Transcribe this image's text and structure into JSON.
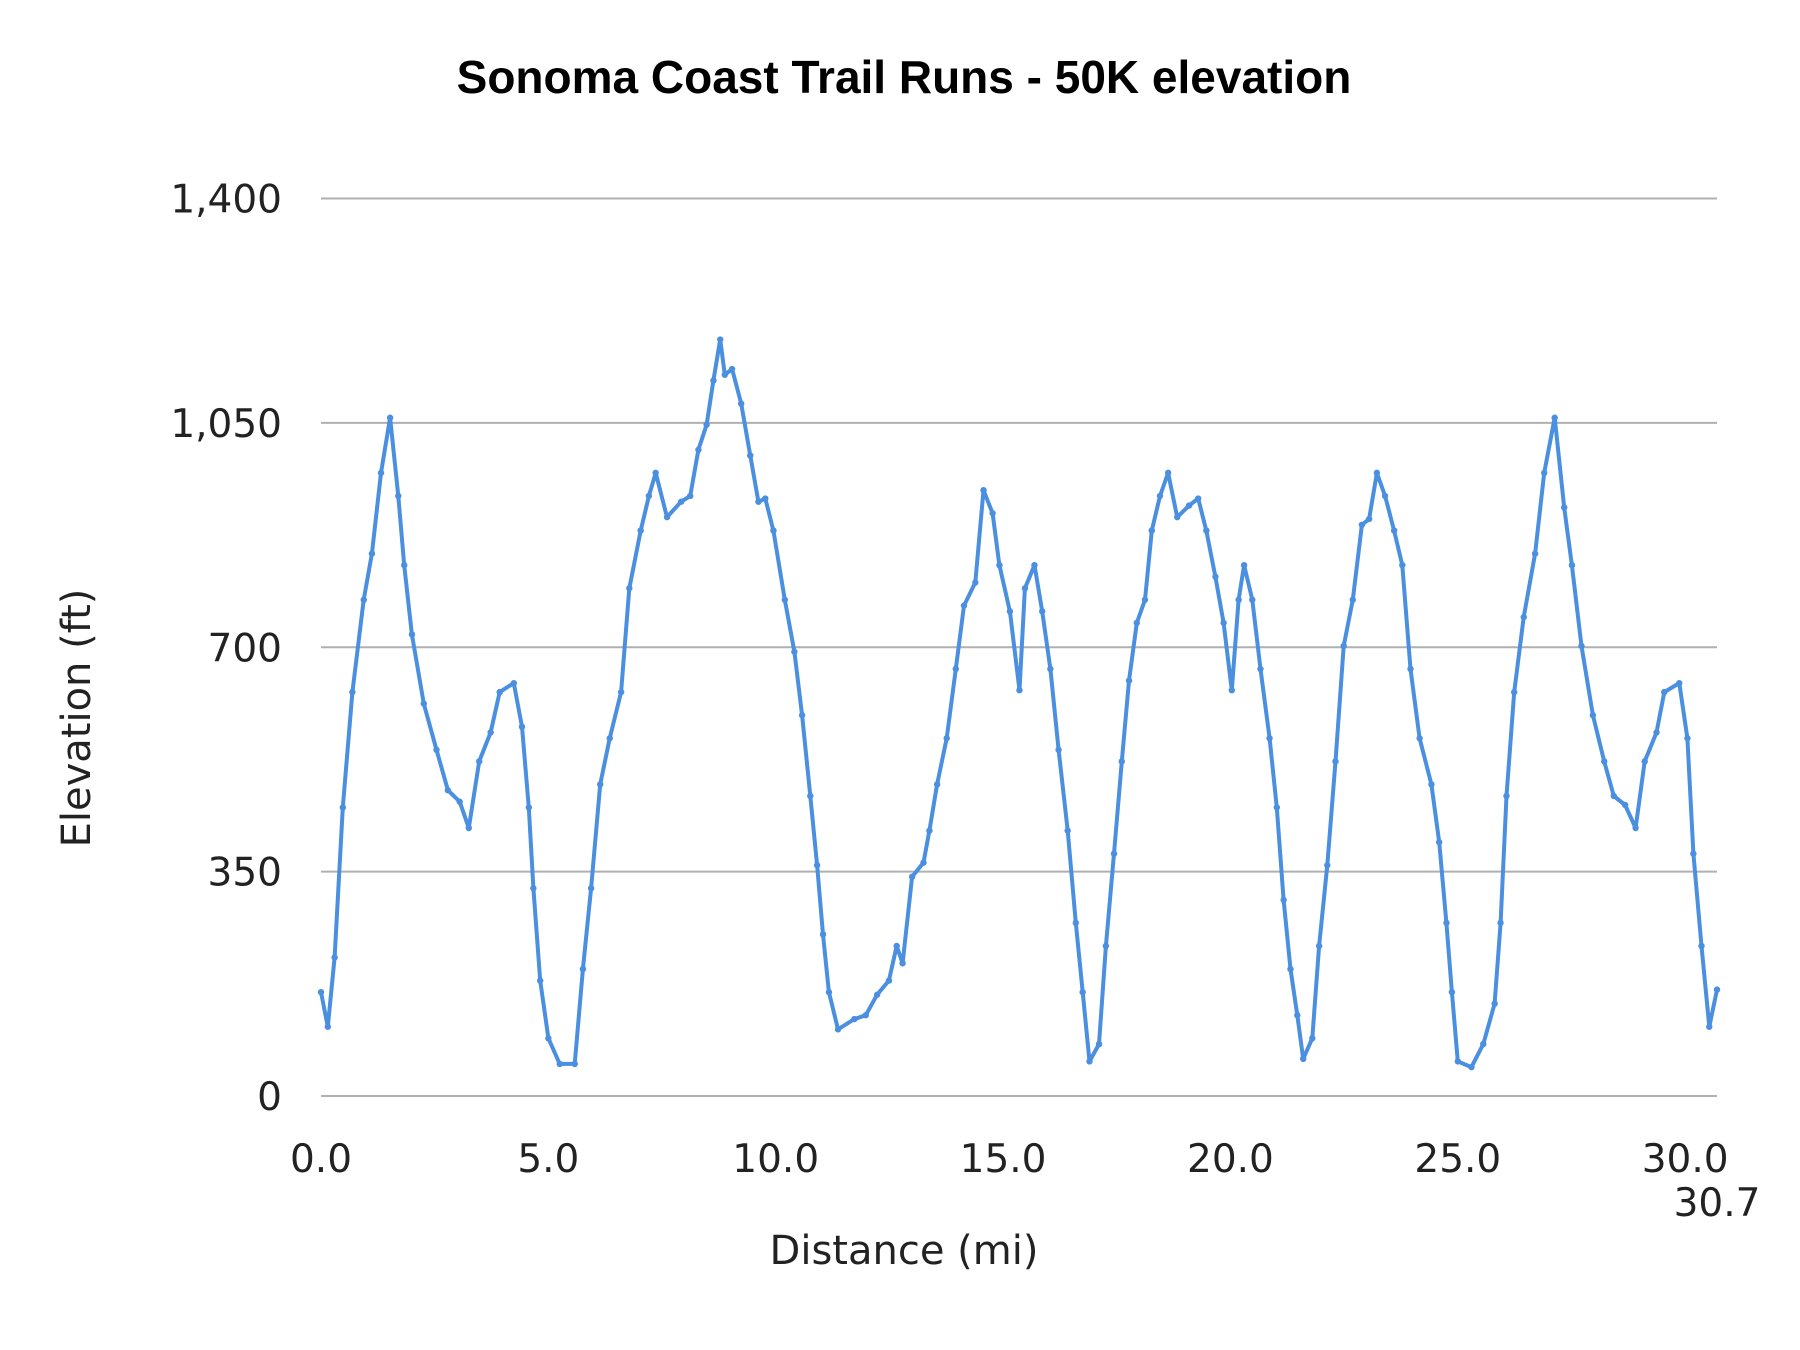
{
  "chart_data": {
    "type": "line",
    "title": "Sonoma Coast Trail Runs - 50K elevation",
    "xlabel": "Distance (mi)",
    "ylabel": "Elevation (ft)",
    "xlim": [
      0,
      30.7
    ],
    "ylim": [
      0,
      1400
    ],
    "x_ticks": [
      "0.0",
      "5.0",
      "10.0",
      "15.0",
      "20.0",
      "25.0",
      "30.0",
      "30.7"
    ],
    "x_tick_values": [
      0,
      5,
      10,
      15,
      20,
      25,
      30,
      30.7
    ],
    "y_ticks": [
      "0",
      "350",
      "700",
      "1,050",
      "1,400"
    ],
    "y_tick_values": [
      0,
      350,
      700,
      1050,
      1400
    ],
    "grid": "horizontal",
    "line_color": "#4a8fe0",
    "grid_color": "#b0b0b0",
    "series": [
      {
        "x": [
          0,
          0.15,
          0.3,
          0.48,
          0.69,
          0.94,
          1.12,
          1.32,
          1.52,
          1.7,
          1.83,
          2.0,
          2.26,
          2.54,
          2.79,
          3.05,
          3.25,
          3.48,
          3.73,
          3.93,
          4.24,
          4.42,
          4.57,
          4.67,
          4.82,
          5.0,
          5.25,
          5.58,
          5.76,
          5.94,
          6.14,
          6.35,
          6.6,
          6.78,
          7.03,
          7.21,
          7.36,
          7.61,
          7.92,
          8.12,
          8.3,
          8.48,
          8.63,
          8.78,
          8.88,
          9.04,
          9.24,
          9.44,
          9.62,
          9.77,
          9.95,
          10.2,
          10.41,
          10.58,
          10.76,
          10.91,
          11.04,
          11.17,
          11.37,
          11.73,
          11.98,
          12.23,
          12.49,
          12.66,
          12.79,
          13.0,
          13.25,
          13.38,
          13.55,
          13.76,
          13.96,
          14.14,
          14.39,
          14.57,
          14.77,
          14.92,
          15.15,
          15.36,
          15.48,
          15.69,
          15.86,
          16.04,
          16.22,
          16.42,
          16.6,
          16.75,
          16.9,
          17.11,
          17.26,
          17.44,
          17.61,
          17.77,
          17.94,
          18.12,
          18.27,
          18.45,
          18.63,
          18.83,
          19.09,
          19.29,
          19.47,
          19.67,
          19.85,
          20.03,
          20.18,
          20.3,
          20.48,
          20.66,
          20.86,
          21.02,
          21.17,
          21.32,
          21.47,
          21.6,
          21.8,
          21.95,
          22.13,
          22.31,
          22.49,
          22.69,
          22.89,
          23.05,
          23.22,
          23.4,
          23.6,
          23.78,
          23.96,
          24.16,
          24.42,
          24.59,
          24.75,
          24.87,
          25.0,
          25.3,
          25.56,
          25.81,
          25.94,
          26.07,
          26.24,
          26.45,
          26.7,
          26.9,
          27.13,
          27.34,
          27.51,
          27.72,
          27.97,
          28.22,
          28.43,
          28.68,
          28.91,
          29.11,
          29.37,
          29.54,
          29.87,
          30.05,
          30.18,
          30.36,
          30.53,
          30.7
        ],
        "y": [
          162,
          108,
          216,
          450,
          630,
          774,
          846,
          972,
          1058,
          936,
          828,
          720,
          612,
          540,
          477,
          459,
          418,
          522,
          567,
          630,
          644,
          576,
          450,
          324,
          180,
          90,
          50,
          50,
          198,
          324,
          486,
          558,
          630,
          792,
          882,
          936,
          972,
          903,
          927,
          936,
          1008,
          1047,
          1116,
          1180,
          1125,
          1134,
          1080,
          999,
          927,
          932,
          882,
          774,
          693,
          594,
          468,
          360,
          252,
          162,
          104,
          120,
          126,
          158,
          180,
          234,
          207,
          342,
          364,
          414,
          486,
          558,
          666,
          765,
          801,
          945,
          909,
          828,
          756,
          633,
          792,
          828,
          756,
          666,
          540,
          414,
          270,
          162,
          54,
          81,
          234,
          378,
          522,
          648,
          738,
          774,
          882,
          936,
          972,
          903,
          921,
          932,
          882,
          810,
          738,
          633,
          774,
          828,
          774,
          666,
          558,
          450,
          306,
          198,
          126,
          58,
          90,
          234,
          360,
          522,
          702,
          774,
          891,
          900,
          972,
          936,
          882,
          828,
          666,
          558,
          486,
          396,
          270,
          162,
          54,
          45,
          81,
          144,
          270,
          468,
          630,
          747,
          846,
          972,
          1058,
          918,
          828,
          702,
          594,
          522,
          468,
          454,
          418,
          522,
          567,
          630,
          644,
          558,
          378,
          234,
          108,
          166
        ]
      }
    ]
  }
}
